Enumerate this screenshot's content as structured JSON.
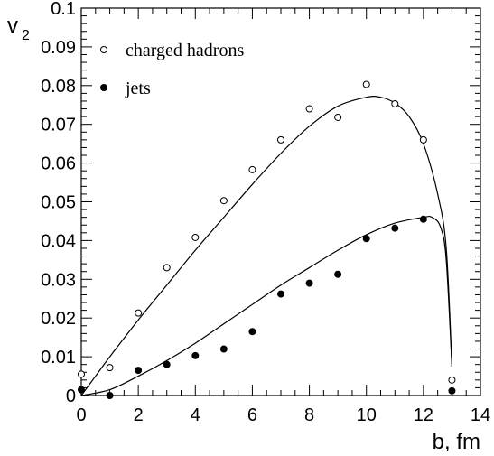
{
  "chart_data": {
    "type": "scatter",
    "xlabel": "b, fm",
    "ylabel": "v",
    "ylabel_subscript": "2",
    "xlim": [
      0,
      14
    ],
    "ylim": [
      0,
      0.1
    ],
    "x_ticks": [
      0,
      2,
      4,
      6,
      8,
      10,
      12,
      14
    ],
    "x_tick_labels": [
      "0",
      "2",
      "4",
      "6",
      "8",
      "10",
      "12",
      "14"
    ],
    "y_ticks": [
      0,
      0.01,
      0.02,
      0.03,
      0.04,
      0.05,
      0.06,
      0.07,
      0.08,
      0.09,
      0.1
    ],
    "y_tick_labels": [
      "0",
      "0.01",
      "0.02",
      "0.03",
      "0.04",
      "0.05",
      "0.06",
      "0.07",
      "0.08",
      "0.09",
      "0.1"
    ],
    "grid": false,
    "legend_position": "top-left",
    "series": [
      {
        "name": "charged hadrons",
        "marker": "open-circle",
        "x": [
          0,
          1,
          2,
          3,
          4,
          5,
          6,
          7,
          8,
          9,
          10,
          11,
          12,
          13
        ],
        "y": [
          0.0055,
          0.0072,
          0.0213,
          0.033,
          0.0408,
          0.0503,
          0.0583,
          0.066,
          0.074,
          0.0718,
          0.0803,
          0.0753,
          0.066,
          0.004
        ],
        "fit_curve": {
          "x": [
            0,
            0.5,
            1,
            2,
            3,
            4,
            5,
            6,
            7,
            8,
            9,
            10,
            10.5,
            11,
            11.5,
            12,
            12.5,
            12.8,
            13
          ],
          "y": [
            0,
            0.005,
            0.01,
            0.0195,
            0.0285,
            0.0375,
            0.046,
            0.0545,
            0.0625,
            0.0695,
            0.0747,
            0.077,
            0.077,
            0.0755,
            0.072,
            0.065,
            0.052,
            0.038,
            0.0075
          ]
        }
      },
      {
        "name": "jets",
        "marker": "filled-circle",
        "x": [
          0,
          1,
          2,
          3,
          4,
          5,
          6,
          7,
          8,
          9,
          10,
          11,
          12,
          13
        ],
        "y": [
          0.0015,
          0.0,
          0.0065,
          0.008,
          0.0103,
          0.012,
          0.0165,
          0.0262,
          0.029,
          0.0313,
          0.0405,
          0.0432,
          0.0455,
          0.0012
        ],
        "fit_curve": {
          "x": [
            0,
            1,
            2,
            3,
            4,
            5,
            6,
            7,
            8,
            9,
            10,
            11,
            12,
            12.3,
            12.6,
            12.8,
            13
          ],
          "y": [
            0,
            0.0015,
            0.005,
            0.009,
            0.0135,
            0.0185,
            0.0235,
            0.0285,
            0.033,
            0.0375,
            0.0415,
            0.0445,
            0.046,
            0.046,
            0.0435,
            0.035,
            0.0075
          ]
        }
      }
    ]
  }
}
